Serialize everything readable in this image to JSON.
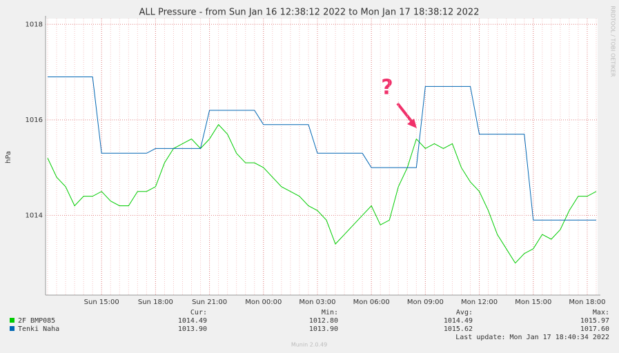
{
  "chart_data": {
    "type": "line",
    "title": "ALL Pressure - from Sun Jan 16 12:38:12 2022 to Mon Jan 17 18:38:12 2022",
    "y_label": "hPa",
    "side_text": "RRDTOOL / TOBI OETIKER",
    "annotation": "?",
    "categories": [
      null,
      null,
      null,
      null,
      null,
      null,
      "Sun 15:00",
      null,
      null,
      null,
      null,
      null,
      "Sun 18:00",
      null,
      null,
      null,
      null,
      null,
      "Sun 21:00",
      null,
      null,
      null,
      null,
      null,
      "Mon 00:00",
      null,
      null,
      null,
      null,
      null,
      "Mon 03:00",
      null,
      null,
      null,
      null,
      null,
      "Mon 06:00",
      null,
      null,
      null,
      null,
      null,
      "Mon 09:00",
      null,
      null,
      null,
      null,
      null,
      "Mon 12:00",
      null,
      null,
      null,
      null,
      null,
      "Mon 15:00",
      null,
      null,
      null,
      null,
      null,
      "Mon 18:00",
      null
    ],
    "series": [
      {
        "name": "2F BMP085",
        "color": "#00cc00",
        "values": [
          1015.2,
          1014.8,
          1014.6,
          1014.2,
          1014.4,
          1014.4,
          1014.5,
          1014.3,
          1014.2,
          1014.2,
          1014.5,
          1014.5,
          1014.6,
          1015.1,
          1015.4,
          1015.5,
          1015.6,
          1015.4,
          1015.6,
          1015.9,
          1015.7,
          1015.3,
          1015.1,
          1015.1,
          1015.0,
          1014.8,
          1014.6,
          1014.5,
          1014.4,
          1014.2,
          1014.1,
          1013.9,
          1013.4,
          1013.6,
          1013.8,
          1014.0,
          1014.2,
          1013.8,
          1013.9,
          1014.6,
          1015.0,
          1015.6,
          1015.4,
          1015.5,
          1015.4,
          1015.5,
          1015.0,
          1014.7,
          1014.5,
          1014.1,
          1013.6,
          1013.3,
          1013.0,
          1013.2,
          1013.3,
          1013.6,
          1013.5,
          1013.7,
          1014.1,
          1014.4,
          1014.4,
          1014.5
        ]
      },
      {
        "name": "Tenki Naha",
        "color": "#0066b3",
        "values": [
          1016.9,
          1016.9,
          1016.9,
          1016.9,
          1016.9,
          1016.9,
          1015.3,
          1015.3,
          1015.3,
          1015.3,
          1015.3,
          1015.3,
          1015.4,
          1015.4,
          1015.4,
          1015.4,
          1015.4,
          1015.4,
          1016.2,
          1016.2,
          1016.2,
          1016.2,
          1016.2,
          1016.2,
          1015.9,
          1015.9,
          1015.9,
          1015.9,
          1015.9,
          1015.9,
          1015.3,
          1015.3,
          1015.3,
          1015.3,
          1015.3,
          1015.3,
          1015.0,
          1015.0,
          1015.0,
          1015.0,
          1015.0,
          1015.0,
          1016.7,
          1016.7,
          1016.7,
          1016.7,
          1016.7,
          1016.7,
          1015.7,
          1015.7,
          1015.7,
          1015.7,
          1015.7,
          1015.7,
          1013.9,
          1013.9,
          1013.9,
          1013.9,
          1013.9,
          1013.9,
          1013.9,
          1013.9
        ]
      }
    ],
    "ylim": [
      1012.33,
      1018.12
    ],
    "yticks": [
      1014,
      1016,
      1018
    ],
    "grid": true,
    "legend_table": {
      "headers": [
        "Cur:",
        "Min:",
        "Avg:",
        "Max:"
      ],
      "rows": [
        [
          "1014.49",
          "1012.80",
          "1014.49",
          "1015.97"
        ],
        [
          "1013.90",
          "1013.90",
          "1015.62",
          "1017.60"
        ]
      ]
    },
    "last_update": "Last update: Mon Jan 17 18:40:34 2022",
    "footer": "Munin 2.0.49"
  }
}
